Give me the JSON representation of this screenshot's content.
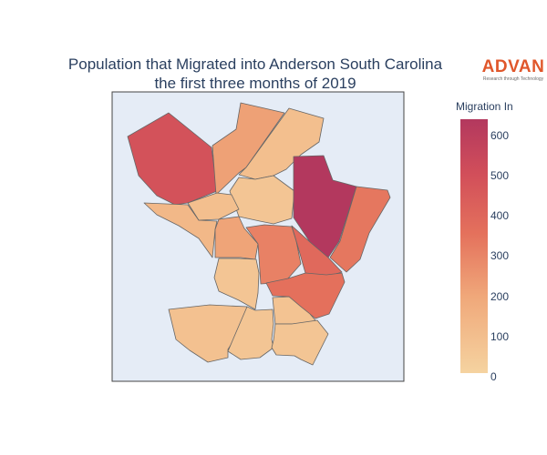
{
  "title": {
    "line1": "Population that Migrated into Anderson South Carolina",
    "line2": "the first three months of 2019"
  },
  "logo": {
    "main": "ADVAN",
    "subtitle": "Research through Technology",
    "color": "#e0572b"
  },
  "colorbar": {
    "title": "Migration In",
    "ticks": [
      "600",
      "500",
      "400",
      "300",
      "200",
      "100",
      "0"
    ],
    "range": [
      0,
      630
    ],
    "colors": [
      "#f5d3a0",
      "#f0a87a",
      "#e4715c",
      "#d24f5a",
      "#b3385e"
    ]
  },
  "map": {
    "background": "#e5ecf6",
    "border": "#555555"
  },
  "chart_data": {
    "type": "choropleth",
    "title": "Population that Migrated into Anderson South Carolina the first three months of 2019",
    "value_label": "Migration In",
    "range": [
      0,
      630
    ],
    "regions": [
      {
        "id": "northwest",
        "value": 480
      },
      {
        "id": "north-top",
        "value": 210
      },
      {
        "id": "north-mid",
        "value": 90
      },
      {
        "id": "north-center",
        "value": 60
      },
      {
        "id": "northeast-large",
        "value": 630
      },
      {
        "id": "east",
        "value": 330
      },
      {
        "id": "west-wedge",
        "value": 120
      },
      {
        "id": "west-small",
        "value": 90
      },
      {
        "id": "center-west",
        "value": 200
      },
      {
        "id": "center-a",
        "value": 300
      },
      {
        "id": "center-b",
        "value": 380
      },
      {
        "id": "center-south",
        "value": 350
      },
      {
        "id": "south-west-mid",
        "value": 60
      },
      {
        "id": "southwest",
        "value": 80
      },
      {
        "id": "south-mid",
        "value": 60
      },
      {
        "id": "south-east",
        "value": 70
      },
      {
        "id": "south",
        "value": 60
      }
    ]
  }
}
